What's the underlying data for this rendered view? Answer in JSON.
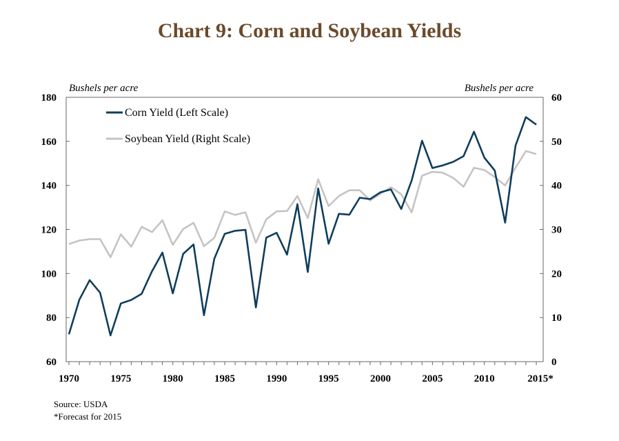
{
  "title": "Chart 9: Corn and Soybean Yields",
  "source": "Source: USDA",
  "footnote": "*Forecast for 2015",
  "colors": {
    "corn": "#0f3d5c",
    "soy": "#c4c4c4",
    "title": "#6b4a2b"
  },
  "chart_data": {
    "type": "line",
    "title": "Chart 9: Corn and Soybean Yields",
    "left_axis_label": "Bushels per acre",
    "right_axis_label": "Bushels per acre",
    "left_ylim": [
      60,
      180
    ],
    "right_ylim": [
      0,
      60
    ],
    "left_ticks": [
      "60",
      "80",
      "100",
      "120",
      "140",
      "160",
      "180"
    ],
    "right_ticks": [
      "0",
      "10",
      "20",
      "30",
      "40",
      "50",
      "60"
    ],
    "x_ticks": [
      {
        "year": 1970,
        "label": "1970"
      },
      {
        "year": 1975,
        "label": "1975"
      },
      {
        "year": 1980,
        "label": "1980"
      },
      {
        "year": 1985,
        "label": "1985"
      },
      {
        "year": 1990,
        "label": "1990"
      },
      {
        "year": 1995,
        "label": "1995"
      },
      {
        "year": 2000,
        "label": "2000"
      },
      {
        "year": 2005,
        "label": "2005"
      },
      {
        "year": 2010,
        "label": "2010"
      },
      {
        "year": 2015,
        "label": "2015*"
      }
    ],
    "xlim": [
      1970,
      2016
    ],
    "legend_position": "top-left",
    "x": [
      1970,
      1971,
      1972,
      1973,
      1974,
      1975,
      1976,
      1977,
      1978,
      1979,
      1980,
      1981,
      1982,
      1983,
      1984,
      1985,
      1986,
      1987,
      1988,
      1989,
      1990,
      1991,
      1992,
      1993,
      1994,
      1995,
      1996,
      1997,
      1998,
      1999,
      2000,
      2001,
      2002,
      2003,
      2004,
      2005,
      2006,
      2007,
      2008,
      2009,
      2010,
      2011,
      2012,
      2013,
      2014,
      2015
    ],
    "series": [
      {
        "name": "Corn Yield (Left Scale)",
        "axis": "left",
        "values": [
          72.4,
          88.1,
          97.0,
          91.3,
          71.9,
          86.4,
          88.0,
          90.8,
          101.0,
          109.5,
          91.0,
          108.9,
          113.2,
          81.1,
          106.7,
          118.0,
          119.4,
          119.8,
          84.6,
          116.3,
          118.5,
          108.6,
          131.5,
          100.7,
          138.6,
          113.5,
          127.1,
          126.7,
          134.4,
          133.8,
          136.9,
          138.2,
          129.3,
          142.2,
          160.3,
          147.9,
          149.1,
          150.7,
          153.3,
          164.4,
          152.6,
          146.8,
          123.1,
          158.1,
          171.0,
          167.6
        ]
      },
      {
        "name": "Soybean Yield (Right Scale)",
        "axis": "right",
        "values": [
          26.7,
          27.5,
          27.8,
          27.8,
          23.7,
          28.9,
          26.1,
          30.6,
          29.4,
          32.1,
          26.5,
          30.1,
          31.5,
          26.2,
          28.1,
          34.1,
          33.3,
          33.9,
          27.0,
          32.3,
          34.1,
          34.2,
          37.6,
          32.6,
          41.4,
          35.3,
          37.6,
          38.9,
          38.9,
          36.6,
          38.1,
          39.6,
          38.0,
          33.9,
          42.2,
          43.1,
          42.9,
          41.7,
          39.7,
          44.0,
          43.5,
          41.9,
          40.0,
          44.0,
          47.8,
          47.1
        ]
      }
    ]
  }
}
